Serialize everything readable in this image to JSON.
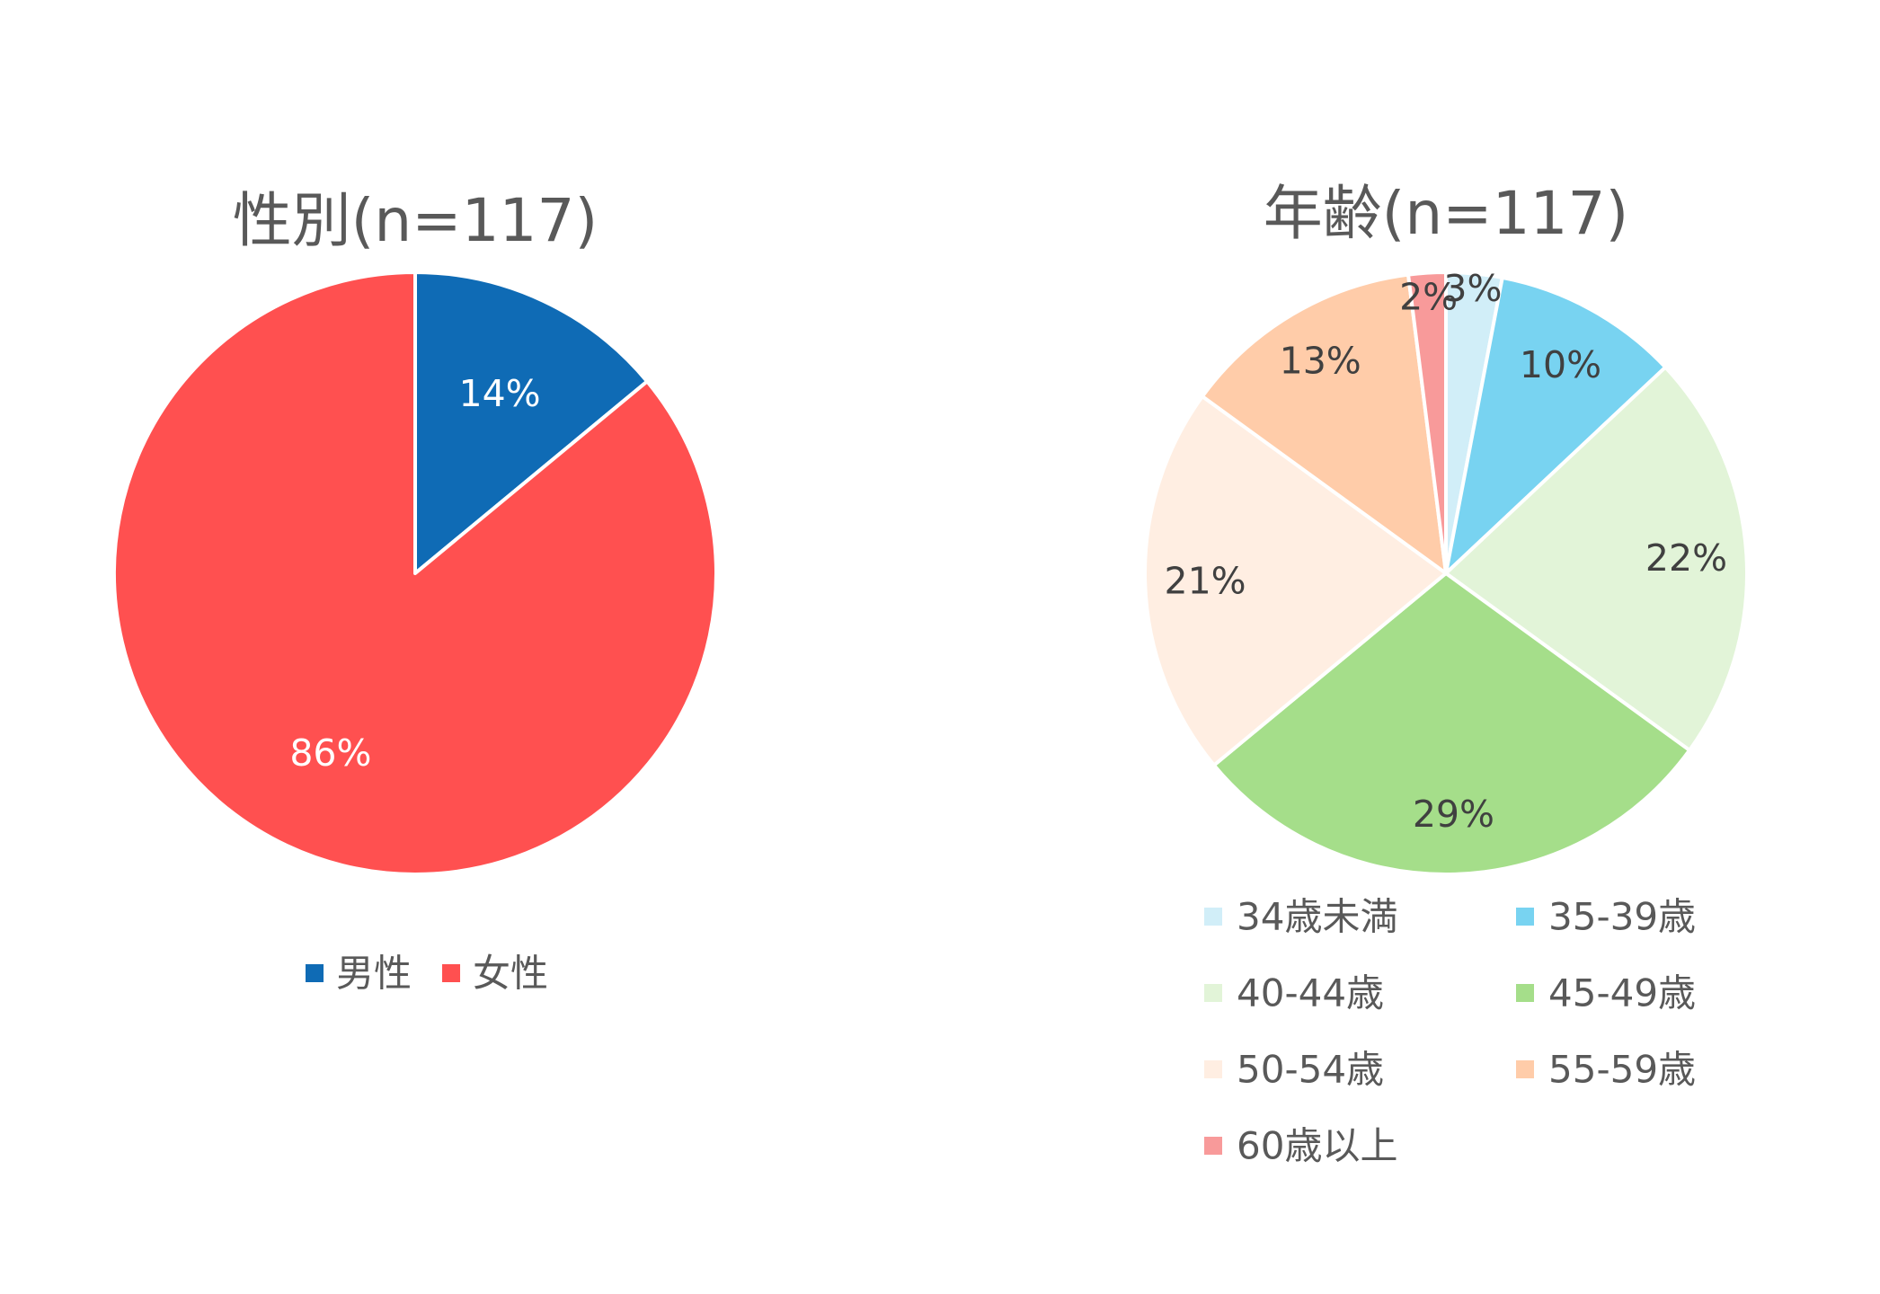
{
  "chart_data": [
    {
      "type": "pie",
      "title": "性別(n=117)",
      "categories": [
        "男性",
        "女性"
      ],
      "values": [
        14,
        86
      ],
      "labels": [
        "14%",
        "86%"
      ],
      "colors": [
        "#0F6BB5",
        "#FF5050"
      ],
      "label_colors": [
        "#FFFFFF",
        "#FFFFFF"
      ],
      "start_angle_deg": 0,
      "direction": "clockwise",
      "legend": "bottom"
    },
    {
      "type": "pie",
      "title": "年齢(n=117)",
      "categories": [
        "34歳未満",
        "35-39歳",
        "40-44歳",
        "45-49歳",
        "50-54歳",
        "55-59歳",
        "60歳以上"
      ],
      "values": [
        3,
        10,
        22,
        29,
        21,
        13,
        2
      ],
      "labels": [
        "3%",
        "10%",
        "22%",
        "29%",
        "21%",
        "13%",
        "2%"
      ],
      "colors": [
        "#D1EEF8",
        "#78D3F1",
        "#E2F4D8",
        "#A5DE8A",
        "#FFEEE2",
        "#FFCCA9",
        "#F89A9A"
      ],
      "label_colors": [
        "#404040",
        "#404040",
        "#404040",
        "#404040",
        "#404040",
        "#404040",
        "#404040"
      ],
      "start_angle_deg": 0,
      "direction": "clockwise",
      "legend": "bottom"
    }
  ]
}
